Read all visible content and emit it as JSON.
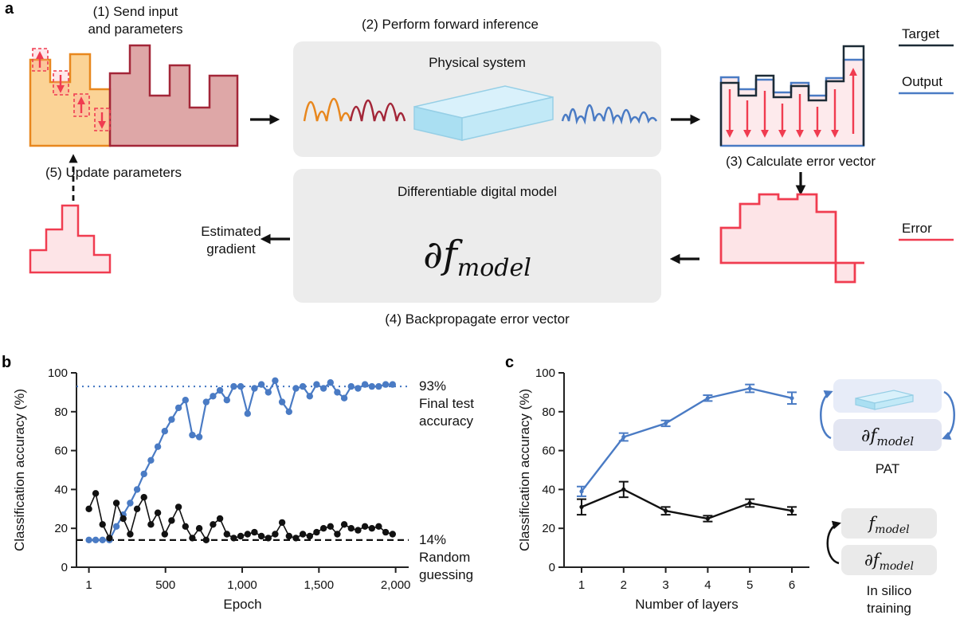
{
  "colors": {
    "blue": "#4a7bc4",
    "red": "#f03c50",
    "orange": "#e8871e",
    "dark_red": "#a32638",
    "dark": "#1c2b36",
    "box_gray": "#ececec"
  },
  "panels": {
    "a": {
      "label": "a",
      "step1_line1": "(1) Send input",
      "step1_line2": "and parameters",
      "step2": "(2) Perform forward inference",
      "physical_system": "Physical system",
      "step3": "(3) Calculate error vector",
      "target": "Target",
      "output": "Output",
      "error": "Error",
      "digital_model": "Differentiable digital model",
      "math_main": "∂f",
      "math_sub": "model",
      "step4": "(4) Backpropagate error vector",
      "est_grad_line1": "Estimated",
      "est_grad_line2": "gradient",
      "step5": "(5) Update parameters"
    },
    "b": {
      "label": "b"
    },
    "c": {
      "label": "c",
      "legend": {
        "pat_label": "PAT",
        "pat_math_main": "∂f",
        "pat_math_sub": "model",
        "f_main": "f",
        "f_sub": "model",
        "df_main": "∂f",
        "df_sub": "model",
        "insilico_line1": "In silico",
        "insilico_line2": "training"
      }
    }
  },
  "chart_data": [
    {
      "id": "b",
      "type": "scatter",
      "xlabel": "Epoch",
      "ylabel": "Classification accuracy (%)",
      "xlim": [
        -80,
        2085
      ],
      "ylim": [
        0,
        100
      ],
      "x_ticks": [
        1,
        500,
        1000,
        1500,
        2000
      ],
      "x_tick_labels": [
        "1",
        "500",
        "1,000",
        "1,500",
        "2,000"
      ],
      "y_ticks": [
        0,
        20,
        40,
        60,
        80,
        100
      ],
      "legend_position": "right",
      "grid": false,
      "series": [
        {
          "name": "PAT",
          "color": "#4a7bc4",
          "x": [
            1,
            45,
            90,
            135,
            180,
            225,
            270,
            315,
            360,
            405,
            450,
            495,
            540,
            585,
            630,
            675,
            720,
            765,
            810,
            855,
            900,
            945,
            990,
            1035,
            1080,
            1125,
            1170,
            1215,
            1260,
            1305,
            1350,
            1395,
            1440,
            1485,
            1530,
            1575,
            1620,
            1665,
            1710,
            1755,
            1800,
            1845,
            1890,
            1935,
            1980
          ],
          "y": [
            14,
            14,
            14,
            14,
            21,
            27,
            33,
            40,
            48,
            55,
            62,
            70,
            76,
            82,
            86,
            68,
            67,
            85,
            88,
            91,
            86,
            93,
            93,
            79,
            92,
            94,
            90,
            96,
            85,
            80,
            92,
            93,
            88,
            94,
            92,
            95,
            90,
            87,
            93,
            92,
            94,
            93,
            93,
            94,
            94
          ]
        },
        {
          "name": "In silico",
          "color": "#111111",
          "x": [
            1,
            45,
            90,
            135,
            180,
            225,
            270,
            315,
            360,
            405,
            450,
            495,
            540,
            585,
            630,
            675,
            720,
            765,
            810,
            855,
            900,
            945,
            990,
            1035,
            1080,
            1125,
            1170,
            1215,
            1260,
            1305,
            1350,
            1395,
            1440,
            1485,
            1530,
            1575,
            1620,
            1665,
            1710,
            1755,
            1800,
            1845,
            1890,
            1935,
            1980
          ],
          "y": [
            30,
            38,
            22,
            15,
            33,
            25,
            17,
            30,
            36,
            22,
            28,
            17,
            24,
            31,
            21,
            15,
            20,
            14,
            22,
            25,
            17,
            15,
            16,
            17,
            18,
            16,
            15,
            17,
            23,
            16,
            15,
            17,
            16,
            18,
            20,
            21,
            17,
            22,
            20,
            19,
            21,
            20,
            21,
            18,
            17
          ]
        }
      ],
      "ref_lines": [
        {
          "y": 93,
          "color": "#4a7bc4",
          "style": "dotted",
          "label_lines": [
            "93%",
            "Final test",
            "accuracy"
          ]
        },
        {
          "y": 14,
          "color": "#111111",
          "style": "dashed",
          "label_lines": [
            "14%",
            "Random",
            "guessing"
          ]
        }
      ]
    },
    {
      "id": "c",
      "type": "line",
      "xlabel": "Number of layers",
      "ylabel": "Classification accuracy (%)",
      "x": [
        1,
        2,
        3,
        4,
        5,
        6
      ],
      "x_tick_labels": [
        "1",
        "2",
        "3",
        "4",
        "5",
        "6"
      ],
      "ylim": [
        0,
        100
      ],
      "y_ticks": [
        0,
        20,
        40,
        60,
        80,
        100
      ],
      "grid": false,
      "series": [
        {
          "name": "PAT",
          "color": "#4a7bc4",
          "values": [
            39,
            67,
            74,
            87,
            92,
            87
          ],
          "errors": [
            2.5,
            2,
            1.5,
            1.5,
            2,
            3
          ]
        },
        {
          "name": "In silico training",
          "color": "#111111",
          "values": [
            31,
            40,
            29,
            25,
            33,
            29
          ],
          "errors": [
            4,
            4,
            2,
            1.5,
            2,
            2
          ]
        }
      ]
    }
  ]
}
